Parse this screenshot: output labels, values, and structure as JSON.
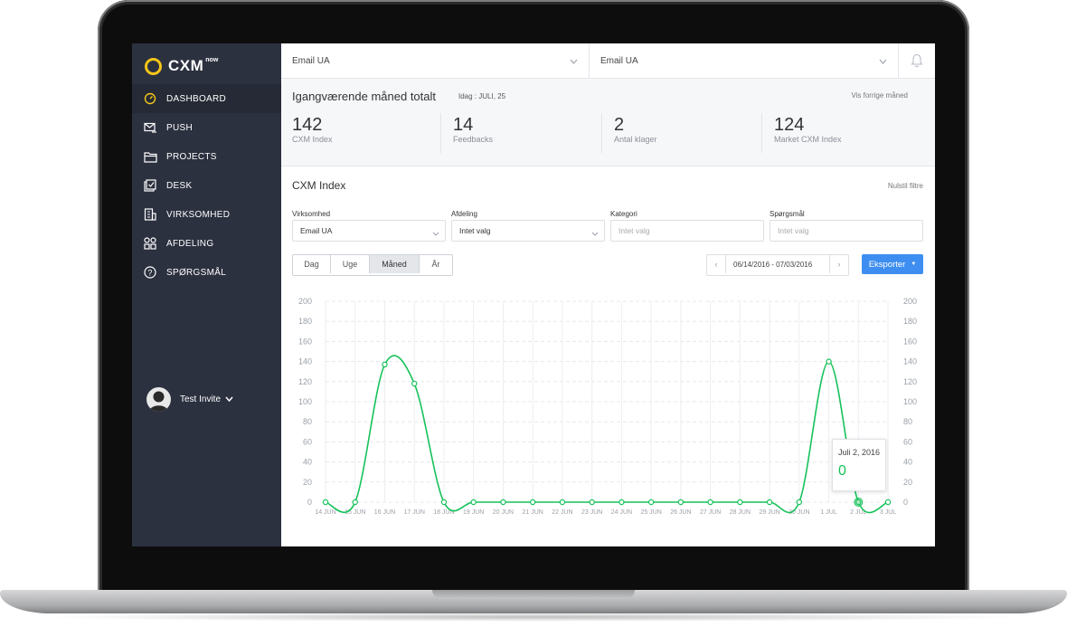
{
  "sidebar": {
    "logo": "CXM",
    "logo_sup": "now",
    "items": [
      {
        "label": "DASHBOARD",
        "icon": "gauge-icon"
      },
      {
        "label": "PUSH",
        "icon": "send-mail-icon"
      },
      {
        "label": "PROJECTS",
        "icon": "folder-icon"
      },
      {
        "label": "DESK",
        "icon": "checklist-icon"
      },
      {
        "label": "VIRKSOMHED",
        "icon": "building-icon"
      },
      {
        "label": "AFDELING",
        "icon": "grid-icon"
      },
      {
        "label": "SPØRGSMÅL",
        "icon": "question-icon"
      }
    ],
    "user": "Test Invite"
  },
  "topbar": {
    "select1": "Email UA",
    "select2": "Email UA"
  },
  "summary": {
    "title": "Igangværende måned totalt",
    "today": "Idag : JULI, 25",
    "link": "Vis forrige måned",
    "stats": [
      {
        "value": "142",
        "label": "CXM Index"
      },
      {
        "value": "14",
        "label": "Feedbacks"
      },
      {
        "value": "2",
        "label": "Antal klager"
      },
      {
        "value": "124",
        "label": "Market CXM Index"
      }
    ]
  },
  "cxm": {
    "title": "CXM Index",
    "reset": "Nulstil filtre",
    "filters": [
      {
        "label": "Virksomhed",
        "value": "Email UA"
      },
      {
        "label": "Afdeling",
        "value": "Intet valg"
      },
      {
        "label": "Kategori",
        "value": "Intet valg"
      },
      {
        "label": "Spørgsmål",
        "value": "Intet valg"
      }
    ],
    "periods": [
      "Dag",
      "Uge",
      "Måned",
      "År"
    ],
    "date_range": "06/14/2016 - 07/03/2016",
    "export": "Eksporter"
  },
  "tooltip": {
    "date": "Juli 2, 2016",
    "value": "0"
  },
  "chart_data": {
    "type": "line",
    "categories": [
      "14 JUN",
      "15 JUN",
      "16 JUN",
      "17 JUN",
      "18 JUN",
      "19 JUN",
      "20 JUN",
      "21 JUN",
      "22 JUN",
      "23 JUN",
      "24 JUN",
      "25 JUN",
      "26 JUN",
      "27 JUN",
      "28 JUN",
      "29 JUN",
      "30 JUN",
      "1 JUL",
      "2 JUL",
      "3 JUL"
    ],
    "values": [
      0,
      0,
      137,
      118,
      0,
      0,
      0,
      0,
      0,
      0,
      0,
      0,
      0,
      0,
      0,
      0,
      0,
      140,
      0,
      0
    ],
    "ylim": [
      0,
      200
    ],
    "yticks": [
      0,
      20,
      40,
      60,
      80,
      100,
      120,
      140,
      160,
      180,
      200
    ],
    "grid": true,
    "color": "#17c25a"
  }
}
